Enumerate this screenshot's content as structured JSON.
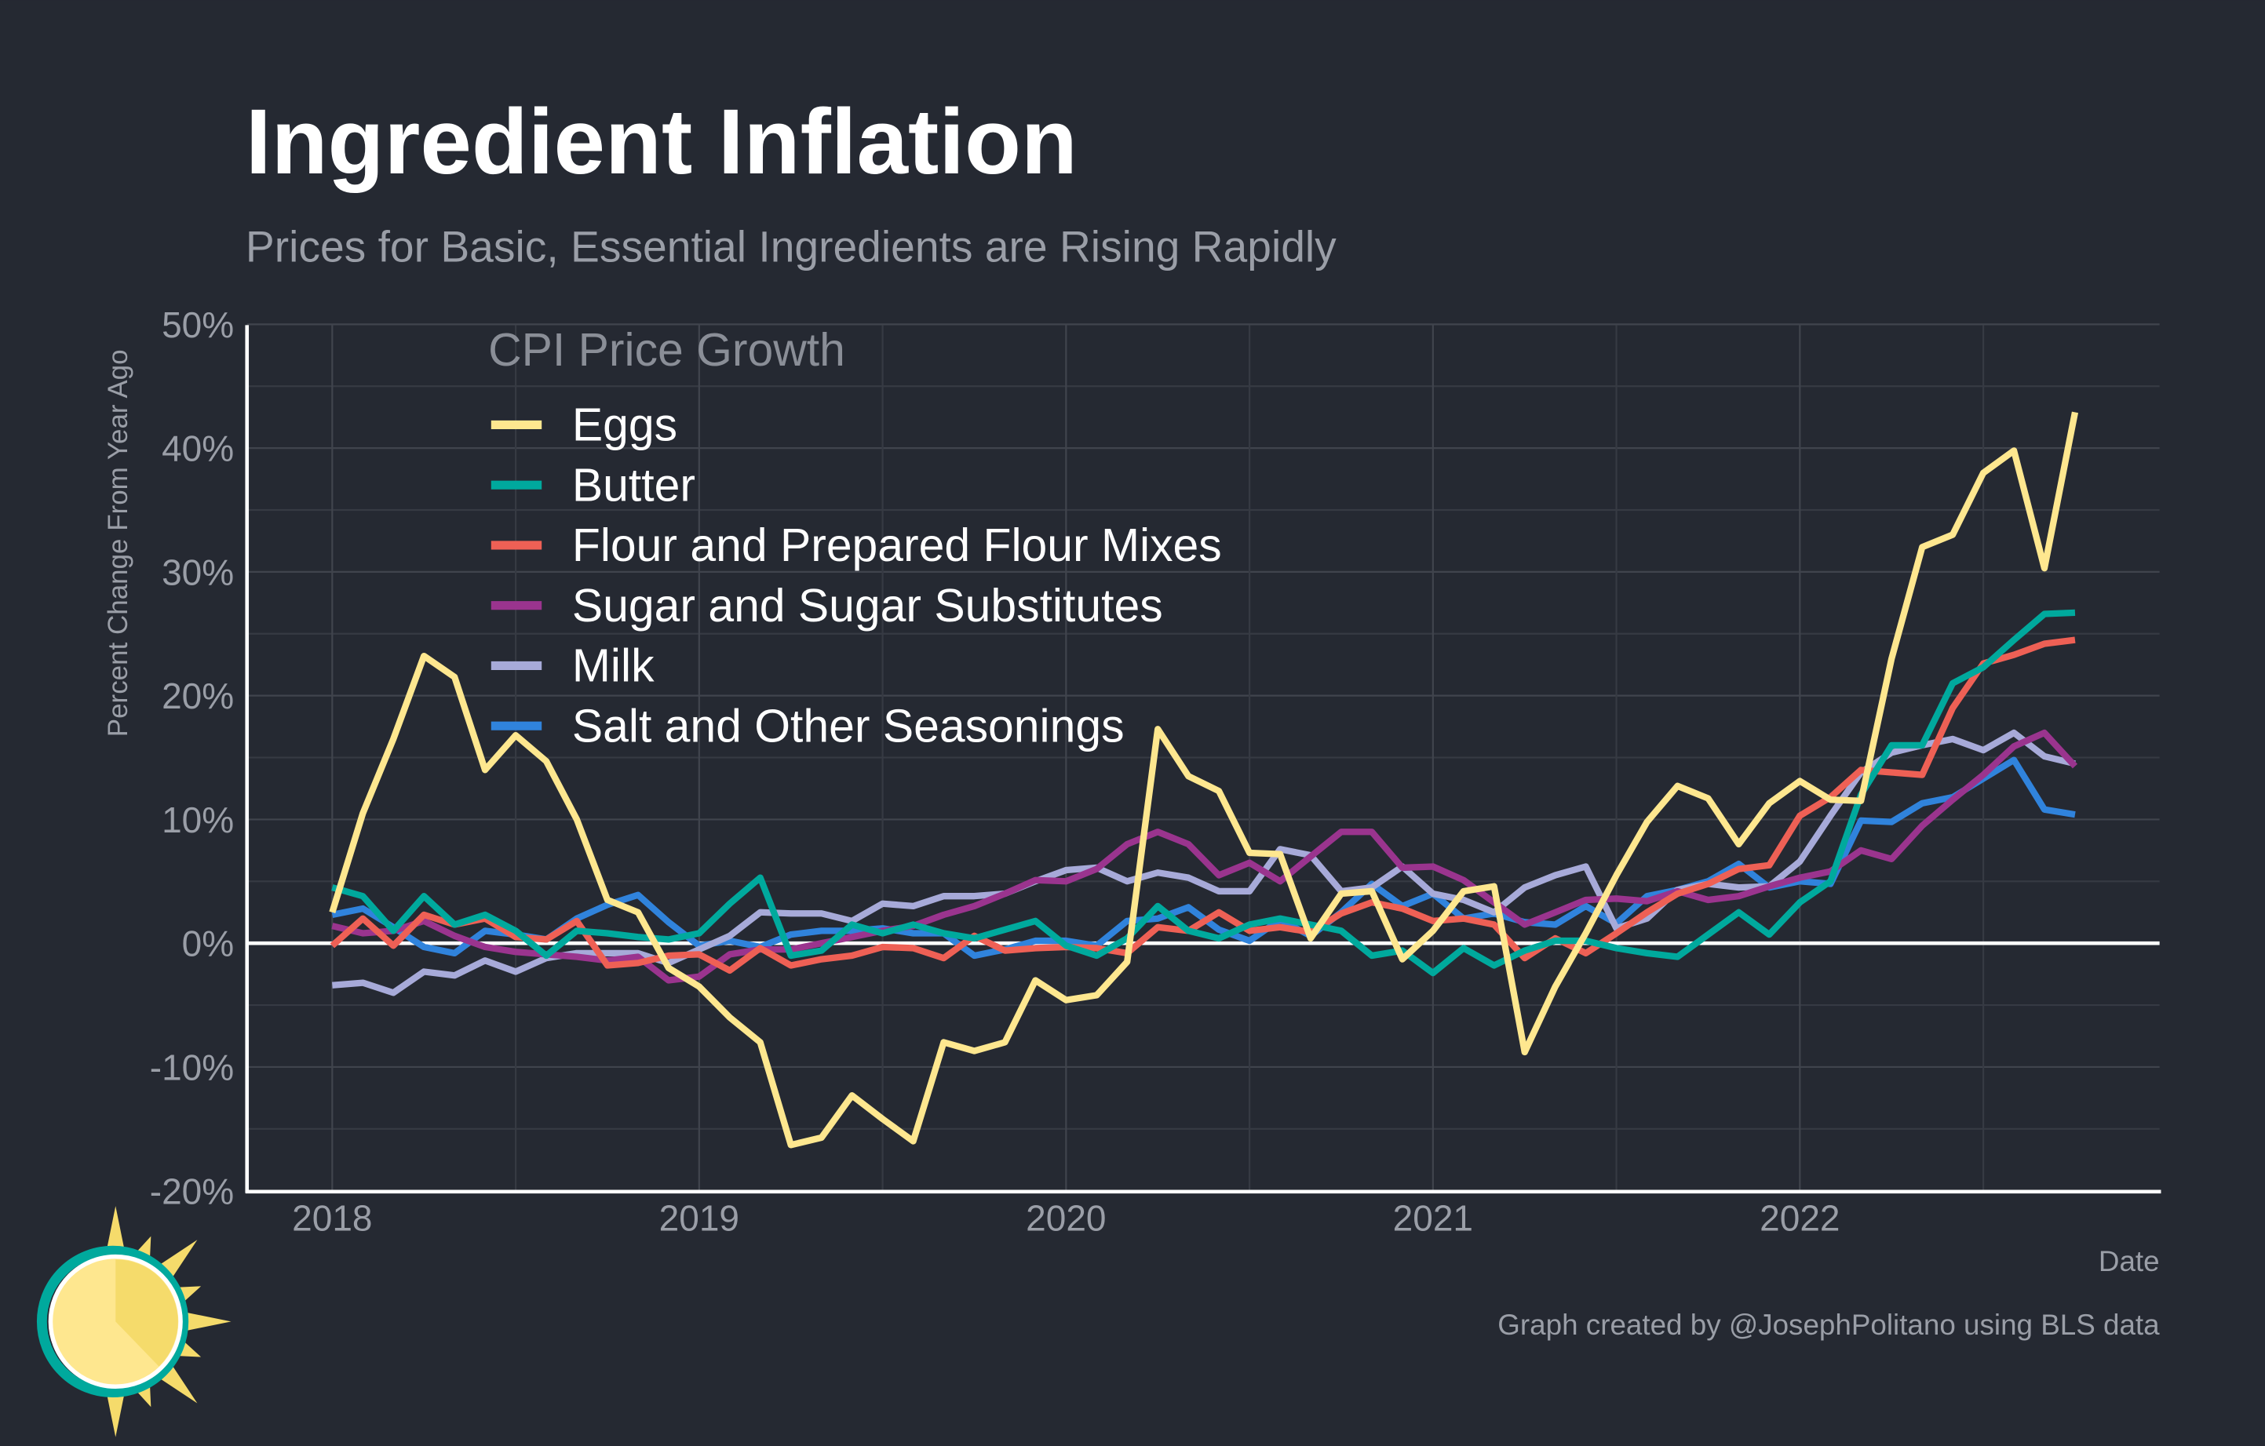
{
  "title": "Ingredient Inflation",
  "subtitle": "Prices for Basic, Essential Ingredients are Rising Rapidly",
  "caption": "Graph created by @JosephPolitano using BLS data",
  "background": "#252932",
  "chart_data": {
    "type": "line",
    "xlabel": "Date",
    "ylabel": "Percent Change From Year Ago",
    "legend_title": "CPI Price Growth",
    "legend_position": "top-left",
    "grid": true,
    "ylim": [
      -20,
      50
    ],
    "y_ticks": [
      "-20%",
      "-10%",
      "0%",
      "10%",
      "20%",
      "30%",
      "40%",
      "50%"
    ],
    "y_tick_values": [
      -20,
      -10,
      0,
      10,
      20,
      30,
      40,
      50
    ],
    "x_ticks": [
      "2018",
      "2019",
      "2020",
      "2021",
      "2022"
    ],
    "x": [
      "2018-01",
      "2018-02",
      "2018-03",
      "2018-04",
      "2018-05",
      "2018-06",
      "2018-07",
      "2018-08",
      "2018-09",
      "2018-10",
      "2018-11",
      "2018-12",
      "2019-01",
      "2019-02",
      "2019-03",
      "2019-04",
      "2019-05",
      "2019-06",
      "2019-07",
      "2019-08",
      "2019-09",
      "2019-10",
      "2019-11",
      "2019-12",
      "2020-01",
      "2020-02",
      "2020-03",
      "2020-04",
      "2020-05",
      "2020-06",
      "2020-07",
      "2020-08",
      "2020-09",
      "2020-10",
      "2020-11",
      "2020-12",
      "2021-01",
      "2021-02",
      "2021-03",
      "2021-04",
      "2021-05",
      "2021-06",
      "2021-07",
      "2021-08",
      "2021-09",
      "2021-10",
      "2021-11",
      "2021-12",
      "2022-01",
      "2022-02",
      "2022-03",
      "2022-04",
      "2022-05",
      "2022-06",
      "2022-07",
      "2022-08",
      "2022-09",
      "2022-10"
    ],
    "series": [
      {
        "name": "Eggs",
        "color": "#FEE78F",
        "values": [
          2.5,
          10.5,
          16.5,
          23.2,
          21.5,
          14,
          16.8,
          14.7,
          10,
          3.5,
          2.5,
          -2,
          -3.5,
          -6,
          -8,
          -16.3,
          -15.7,
          -12.3,
          -14.2,
          -16,
          -8,
          -8.7,
          -8,
          -3,
          -4.6,
          -4.2,
          -1.5,
          17.3,
          13.5,
          12.3,
          7.3,
          7.2,
          0.4,
          4,
          4.2,
          -1.3,
          1,
          4.2,
          4.6,
          -8.8,
          -3.5,
          0.8,
          5.5,
          9.8,
          12.7,
          11.7,
          8,
          11.3,
          13.1,
          11.6,
          11.5,
          23,
          32,
          33,
          38,
          39.8,
          30.3,
          42.9
        ]
      },
      {
        "name": "Butter",
        "color": "#00A99D",
        "values": [
          4.5,
          3.8,
          1,
          3.8,
          1.5,
          2.3,
          1,
          -1,
          1,
          0.8,
          0.5,
          0.3,
          0.8,
          3.2,
          5.3,
          -1,
          -0.6,
          1.5,
          0.8,
          1.5,
          0.8,
          0.4,
          1.1,
          1.8,
          -0.2,
          -1,
          0.4,
          3,
          1,
          0.4,
          1.5,
          2,
          1.5,
          1,
          -1,
          -0.6,
          -2.4,
          -0.4,
          -1.8,
          -0.6,
          0.2,
          0.2,
          -0.4,
          -0.8,
          -1.1,
          0.7,
          2.5,
          0.7,
          3.3,
          5,
          12,
          16,
          16,
          21,
          22.3,
          24.5,
          26.6,
          26.7
        ]
      },
      {
        "name": "Flour and Prepared Flour Mixes",
        "color": "#EE6055",
        "values": [
          -0.2,
          2,
          -0.2,
          2.3,
          1.5,
          2,
          0.5,
          0.3,
          1.8,
          -1.8,
          -1.6,
          -1,
          -0.9,
          -2.2,
          -0.4,
          -1.8,
          -1.3,
          -1,
          -0.3,
          -0.4,
          -1.2,
          0.6,
          -0.6,
          -0.4,
          -0.3,
          -0.4,
          -0.8,
          1.3,
          1,
          2.5,
          1,
          1.3,
          0.9,
          2.4,
          3.3,
          2.8,
          1.8,
          2,
          1.5,
          -1.2,
          0.4,
          -0.8,
          0.8,
          2.5,
          4,
          4.8,
          6,
          6.3,
          10.3,
          11.8,
          14,
          13.8,
          13.6,
          19,
          22.6,
          23.3,
          24.2,
          24.5
        ]
      },
      {
        "name": "Sugar and Sugar Substitutes",
        "color": "#9A348E",
        "values": [
          1.4,
          0.8,
          1,
          1.8,
          0.6,
          -0.3,
          -0.7,
          -0.9,
          -1.1,
          -1.4,
          -1.1,
          -3,
          -2.7,
          -0.9,
          -0.5,
          -0.5,
          0,
          0.5,
          1,
          1.4,
          2.3,
          3,
          4,
          5.1,
          5,
          6,
          8,
          9,
          8,
          5.5,
          6.5,
          5,
          7,
          9,
          9,
          6.1,
          6.2,
          5.1,
          3.3,
          1.5,
          2.5,
          3.5,
          3.6,
          3.4,
          4.2,
          3.5,
          3.8,
          4.6,
          5.3,
          5.8,
          7.5,
          6.8,
          9.5,
          11.6,
          13.6,
          15.9,
          17,
          14.3
        ]
      },
      {
        "name": "Milk",
        "color": "#A7AAD9",
        "values": [
          -3.4,
          -3.2,
          -4,
          -2.3,
          -2.6,
          -1.4,
          -2.3,
          -1.2,
          -0.8,
          -0.8,
          -0.8,
          -1.6,
          -0.5,
          0.6,
          2.5,
          2.4,
          2.4,
          1.8,
          3.2,
          3,
          3.8,
          3.8,
          4,
          5,
          5.9,
          6.1,
          5,
          5.7,
          5.3,
          4.2,
          4.2,
          7.6,
          7.1,
          4.2,
          4.5,
          6.2,
          4,
          3.5,
          2.5,
          4.5,
          5.5,
          6.2,
          1.2,
          2,
          4.3,
          4.8,
          4.5,
          4.6,
          6.6,
          10.3,
          13.8,
          15.4,
          16,
          16.5,
          15.6,
          17,
          15.1,
          14.5
        ]
      },
      {
        "name": "Salt and Other Seasonings",
        "color": "#3083DC",
        "values": [
          2.3,
          2.8,
          1.3,
          -0.3,
          -0.8,
          1,
          0.7,
          0.3,
          2,
          3.1,
          3.9,
          1.7,
          -0.2,
          0.2,
          -0.3,
          0.7,
          1,
          1,
          1.2,
          0.8,
          0.8,
          -1,
          -0.5,
          0.2,
          0.2,
          -0.2,
          1.8,
          2,
          2.9,
          1.1,
          0.2,
          1.9,
          0.6,
          2.5,
          4.8,
          3,
          4,
          2,
          2.4,
          1.7,
          1.5,
          3,
          1.6,
          3.8,
          4.3,
          5,
          6.4,
          4.5,
          5,
          4.8,
          9.9,
          9.8,
          11.3,
          11.8,
          13.3,
          14.8,
          10.8,
          10.4
        ]
      }
    ]
  }
}
